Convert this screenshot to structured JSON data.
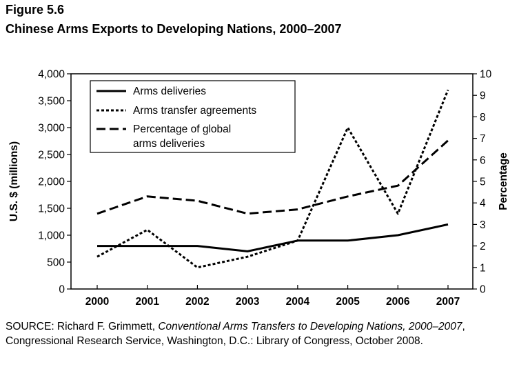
{
  "figure_label": "Figure 5.6",
  "title": "Chinese Arms Exports to Developing Nations, 2000–2007",
  "source": {
    "prefix": "SOURCE: Richard F. Grimmett, ",
    "title": "Conventional Arms Transfers to Developing Nations, 2000–2007",
    "rest": ", Congressional Research Service, Washington, D.C.: Library of Congress, October 2008."
  },
  "chart_data": {
    "type": "line",
    "title": "Chinese Arms Exports to Developing Nations, 2000–2007",
    "ylabel": "U.S. $ (millions)",
    "y2label": "Percentage",
    "xlabel": "",
    "x": [
      "2000",
      "2001",
      "2002",
      "2003",
      "2004",
      "2005",
      "2006",
      "2007"
    ],
    "ylim": [
      0,
      4000
    ],
    "y_ticks": [
      "0",
      "500",
      "1,000",
      "1,500",
      "2,000",
      "2,500",
      "3,000",
      "3,500",
      "4,000"
    ],
    "y2lim": [
      0,
      10
    ],
    "y2_ticks": [
      "0",
      "1",
      "2",
      "3",
      "4",
      "5",
      "6",
      "7",
      "8",
      "9",
      "10"
    ],
    "grid": false,
    "legend_position": "top-left",
    "series": [
      {
        "name": "Arms deliveries",
        "axis": "left",
        "style": "solid",
        "values": [
          800,
          800,
          800,
          700,
          900,
          900,
          1000,
          1200
        ]
      },
      {
        "name": "Arms transfer agreements",
        "axis": "left",
        "style": "dotted",
        "values": [
          600,
          1100,
          400,
          600,
          900,
          3000,
          1400,
          3700
        ]
      },
      {
        "name": "Percentage of global arms deliveries",
        "axis": "right",
        "style": "dashed",
        "values": [
          3.5,
          4.3,
          4.1,
          3.5,
          3.7,
          4.3,
          4.8,
          6.9
        ]
      }
    ],
    "colors": {
      "line": "#000000"
    }
  }
}
